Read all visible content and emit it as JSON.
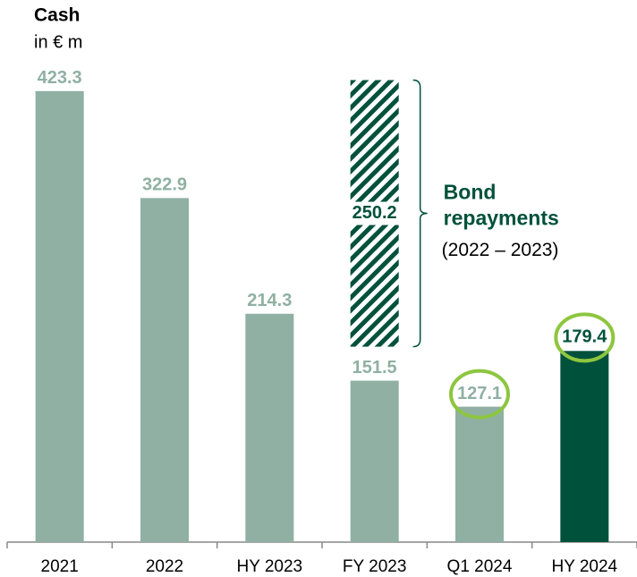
{
  "chart_data": {
    "type": "bar",
    "title": "Cash",
    "subtitle": "in € m",
    "categories": [
      "2021",
      "2022",
      "HY 2023",
      "FY 2023",
      "Q1 2024",
      "HY 2024"
    ],
    "series": [
      {
        "name": "Cash",
        "values": [
          423.3,
          322.9,
          214.3,
          151.5,
          127.1,
          179.4
        ],
        "colors": [
          "#8fb0a3",
          "#8fb0a3",
          "#8fb0a3",
          "#8fb0a3",
          "#8fb0a3",
          "#00513b"
        ]
      },
      {
        "name": "Bond repayments",
        "color": "#00513b",
        "values": [
          null,
          null,
          null,
          250.2,
          null,
          null
        ]
      }
    ],
    "highlight": [
      false,
      false,
      false,
      false,
      true,
      true
    ],
    "highlight_color": "#8dc63f",
    "annotation": {
      "lines": [
        "Bond",
        "repayments"
      ],
      "note": "(2022 – 2023)"
    },
    "ylim": [
      0,
      450
    ]
  }
}
